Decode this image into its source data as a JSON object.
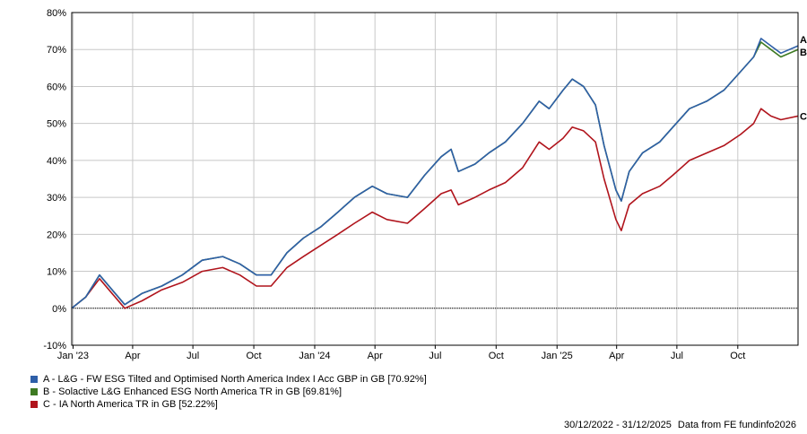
{
  "chart_data": {
    "type": "line",
    "y_unit": "%",
    "ylim": [
      -10,
      80
    ],
    "y_ticks": [
      "80%",
      "70%",
      "60%",
      "50%",
      "40%",
      "30%",
      "20%",
      "10%",
      "0%",
      "-10%"
    ],
    "x_tick_labels": [
      "Jan '23",
      "Apr",
      "Jul",
      "Oct",
      "Jan '24",
      "Apr",
      "Jul",
      "Oct",
      "Jan '25",
      "Apr",
      "Jul",
      "Oct"
    ],
    "x_range": [
      "2022-12-30",
      "2025-12-31"
    ],
    "grid": true,
    "zero_line": true,
    "series": [
      {
        "name": "A - L&G - FW ESG Tilted and Optimised North America Index I Acc GBP in GB [70.92%]",
        "end_label": "A",
        "color": "#2E5FA8",
        "x": [
          "2022-12-30",
          "2023-01-20",
          "2023-02-10",
          "2023-03-01",
          "2023-03-20",
          "2023-04-15",
          "2023-05-15",
          "2023-06-15",
          "2023-07-15",
          "2023-08-15",
          "2023-09-10",
          "2023-10-05",
          "2023-10-27",
          "2023-11-20",
          "2023-12-15",
          "2024-01-10",
          "2024-02-05",
          "2024-03-01",
          "2024-03-28",
          "2024-04-19",
          "2024-05-20",
          "2024-06-15",
          "2024-07-10",
          "2024-07-25",
          "2024-08-05",
          "2024-08-30",
          "2024-09-20",
          "2024-10-15",
          "2024-11-10",
          "2024-12-05",
          "2024-12-20",
          "2025-01-10",
          "2025-01-24",
          "2025-02-10",
          "2025-02-28",
          "2025-03-13",
          "2025-03-31",
          "2025-04-08",
          "2025-04-20",
          "2025-05-10",
          "2025-06-05",
          "2025-06-25",
          "2025-07-20",
          "2025-08-15",
          "2025-09-10",
          "2025-10-05",
          "2025-10-25",
          "2025-11-05",
          "2025-11-20",
          "2025-12-05",
          "2025-12-31"
        ],
        "y": [
          0,
          3,
          9,
          5,
          1,
          4,
          6,
          9,
          13,
          14,
          12,
          9,
          9,
          15,
          19,
          22,
          26,
          30,
          33,
          31,
          30,
          36,
          41,
          43,
          37,
          39,
          42,
          45,
          50,
          56,
          54,
          59,
          62,
          60,
          55,
          44,
          32,
          29,
          37,
          42,
          45,
          49,
          54,
          56,
          59,
          64,
          68,
          73,
          71,
          69,
          71
        ]
      },
      {
        "name": "B - Solactive L&G Enhanced ESG North America TR in GB [69.81%]",
        "end_label": "B",
        "color": "#3E7A22",
        "x": [
          "2022-12-30",
          "2023-01-20",
          "2023-02-10",
          "2023-03-01",
          "2023-03-20",
          "2023-04-15",
          "2023-05-15",
          "2023-06-15",
          "2023-07-15",
          "2023-08-15",
          "2023-09-10",
          "2023-10-05",
          "2023-10-27",
          "2023-11-20",
          "2023-12-15",
          "2024-01-10",
          "2024-02-05",
          "2024-03-01",
          "2024-03-28",
          "2024-04-19",
          "2024-05-20",
          "2024-06-15",
          "2024-07-10",
          "2024-07-25",
          "2024-08-05",
          "2024-08-30",
          "2024-09-20",
          "2024-10-15",
          "2024-11-10",
          "2024-12-05",
          "2024-12-20",
          "2025-01-10",
          "2025-01-24",
          "2025-02-10",
          "2025-02-28",
          "2025-03-13",
          "2025-03-31",
          "2025-04-08",
          "2025-04-20",
          "2025-05-10",
          "2025-06-05",
          "2025-06-25",
          "2025-07-20",
          "2025-08-15",
          "2025-09-10",
          "2025-10-05",
          "2025-10-25",
          "2025-11-05",
          "2025-11-20",
          "2025-12-05",
          "2025-12-31"
        ],
        "y": [
          0,
          3,
          9,
          5,
          1,
          4,
          6,
          9,
          13,
          14,
          12,
          9,
          9,
          15,
          19,
          22,
          26,
          30,
          33,
          31,
          30,
          36,
          41,
          43,
          37,
          39,
          42,
          45,
          50,
          56,
          54,
          59,
          62,
          60,
          55,
          44,
          32,
          29,
          37,
          42,
          45,
          49,
          54,
          56,
          59,
          64,
          68,
          72,
          70,
          68,
          70
        ]
      },
      {
        "name": "C - IA North America TR in GB [52.22%]",
        "end_label": "C",
        "color": "#B0141C",
        "x": [
          "2022-12-30",
          "2023-01-20",
          "2023-02-10",
          "2023-03-01",
          "2023-03-20",
          "2023-04-15",
          "2023-05-15",
          "2023-06-15",
          "2023-07-15",
          "2023-08-15",
          "2023-09-10",
          "2023-10-05",
          "2023-10-27",
          "2023-11-20",
          "2023-12-15",
          "2024-01-10",
          "2024-02-05",
          "2024-03-01",
          "2024-03-28",
          "2024-04-19",
          "2024-05-20",
          "2024-06-15",
          "2024-07-10",
          "2024-07-25",
          "2024-08-05",
          "2024-08-30",
          "2024-09-20",
          "2024-10-15",
          "2024-11-10",
          "2024-12-05",
          "2024-12-20",
          "2025-01-10",
          "2025-01-24",
          "2025-02-10",
          "2025-02-28",
          "2025-03-13",
          "2025-03-31",
          "2025-04-08",
          "2025-04-20",
          "2025-05-10",
          "2025-06-05",
          "2025-06-25",
          "2025-07-20",
          "2025-08-15",
          "2025-09-10",
          "2025-10-05",
          "2025-10-25",
          "2025-11-05",
          "2025-11-20",
          "2025-12-05",
          "2025-12-31"
        ],
        "y": [
          0,
          3,
          8,
          4,
          0,
          2,
          5,
          7,
          10,
          11,
          9,
          6,
          6,
          11,
          14,
          17,
          20,
          23,
          26,
          24,
          23,
          27,
          31,
          32,
          28,
          30,
          32,
          34,
          38,
          45,
          43,
          46,
          49,
          48,
          45,
          35,
          24,
          21,
          28,
          31,
          33,
          36,
          40,
          42,
          44,
          47,
          50,
          54,
          52,
          51,
          52
        ]
      }
    ]
  },
  "footer": {
    "date_range": "30/12/2022 - 31/12/2025",
    "source": "Data from FE fundinfo2026"
  }
}
